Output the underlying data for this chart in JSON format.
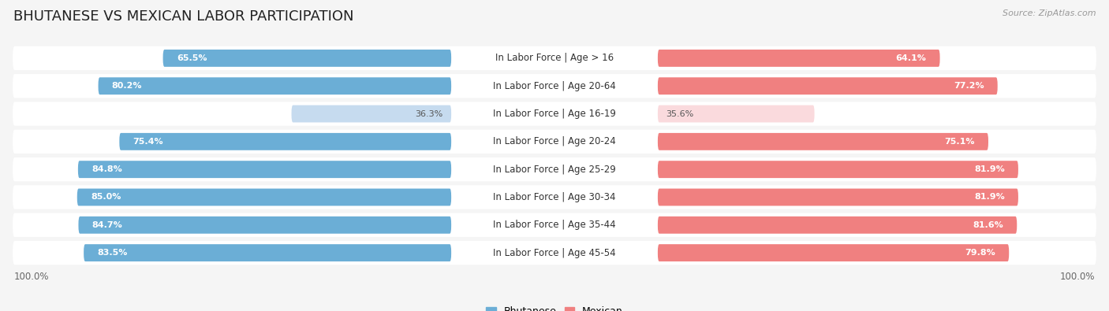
{
  "title": "BHUTANESE VS MEXICAN LABOR PARTICIPATION",
  "source": "Source: ZipAtlas.com",
  "categories": [
    "In Labor Force | Age > 16",
    "In Labor Force | Age 20-64",
    "In Labor Force | Age 16-19",
    "In Labor Force | Age 20-24",
    "In Labor Force | Age 25-29",
    "In Labor Force | Age 30-34",
    "In Labor Force | Age 35-44",
    "In Labor Force | Age 45-54"
  ],
  "bhutanese_values": [
    65.5,
    80.2,
    36.3,
    75.4,
    84.8,
    85.0,
    84.7,
    83.5
  ],
  "mexican_values": [
    64.1,
    77.2,
    35.6,
    75.1,
    81.9,
    81.9,
    81.6,
    79.8
  ],
  "bhutanese_color_strong": "#6BAED6",
  "bhutanese_color_light": "#C6DBEF",
  "mexican_color_strong": "#F08080",
  "mexican_color_light": "#FADADD",
  "bg_color": "#F5F5F5",
  "row_bg_color": "#FFFFFF",
  "max_value": 100.0,
  "title_fontsize": 13,
  "label_fontsize": 8.5,
  "value_fontsize": 8.0,
  "legend_fontsize": 9,
  "threshold": 50.0
}
